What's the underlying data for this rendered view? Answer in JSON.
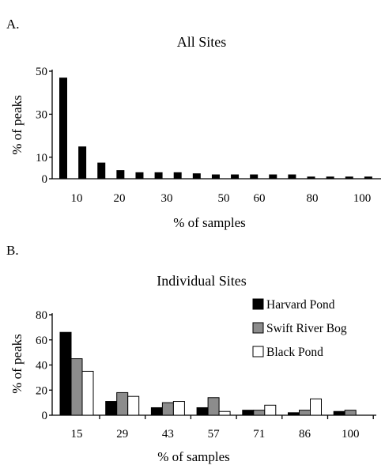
{
  "chart_data": [
    {
      "panel": "A.",
      "type": "bar",
      "title": "All Sites",
      "xlabel": "% of samples",
      "ylabel": "% of peaks",
      "yticks": [
        "0",
        "10",
        "30",
        "50"
      ],
      "ytick_values": [
        0,
        10,
        30,
        50
      ],
      "ylim": [
        0,
        50
      ],
      "xtick_labels": [
        "10",
        "20",
        "30",
        "50",
        "60",
        "80",
        "100"
      ],
      "values": [
        47,
        15,
        7.5,
        4,
        3,
        3,
        3,
        2.5,
        2,
        2,
        2,
        2,
        2,
        1,
        1,
        1,
        1
      ],
      "color": "#000000"
    },
    {
      "panel": "B.",
      "type": "bar",
      "title": "Individual Sites",
      "xlabel": "% of samples",
      "ylabel": "% of peaks",
      "yticks": [
        "0",
        "20",
        "40",
        "60",
        "80"
      ],
      "ytick_values": [
        0,
        20,
        40,
        60,
        80
      ],
      "ylim": [
        0,
        80
      ],
      "categories": [
        "15",
        "29",
        "43",
        "57",
        "71",
        "86",
        "100"
      ],
      "series": [
        {
          "name": "Harvard Pond",
          "values": [
            66,
            11,
            6,
            6,
            4,
            2,
            3
          ],
          "color": "#000000"
        },
        {
          "name": "Swift River Bog",
          "values": [
            45,
            18,
            10,
            14,
            4,
            4,
            4
          ],
          "color": "#8c8c8c"
        },
        {
          "name": "Black Pond",
          "values": [
            35,
            15,
            11,
            3,
            8,
            13,
            0
          ],
          "color": "#ffffff"
        }
      ]
    }
  ]
}
